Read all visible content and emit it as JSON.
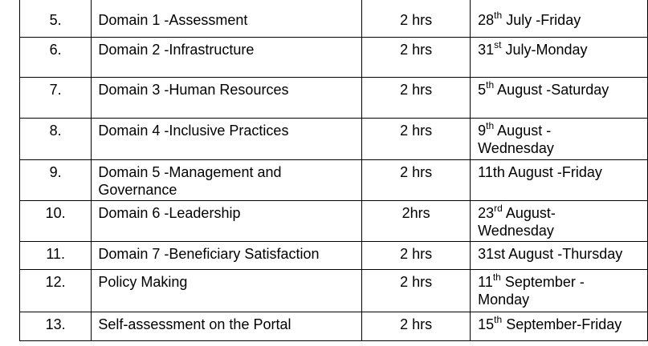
{
  "rows": [
    {
      "num": "5.",
      "item": "Domain 1 -Assessment",
      "duration": "2 hrs",
      "date_day": "28",
      "date_suffix": "th",
      "date_rest": " July -Friday"
    },
    {
      "num": "6.",
      "item": "Domain 2 -Infrastructure",
      "duration": "2 hrs",
      "date_day": "31",
      "date_suffix": "st",
      "date_rest": " July-Monday"
    },
    {
      "num": "7.",
      "item": "Domain 3 -Human Resources",
      "duration": "2 hrs",
      "date_day": "5",
      "date_suffix": "th",
      "date_rest": " August -Saturday"
    },
    {
      "num": "8.",
      "item": "Domain 4 -Inclusive Practices",
      "duration": "2 hrs",
      "date_day": "9",
      "date_suffix": "th",
      "date_rest": " August -\nWednesday"
    },
    {
      "num": "9.",
      "item": "Domain 5 -Management and\nGovernance",
      "duration": "2 hrs",
      "date_day": "11th August -Friday",
      "date_suffix": "",
      "date_rest": ""
    },
    {
      "num": "10.",
      "item": "Domain 6 -Leadership",
      "duration": "2hrs",
      "date_day": "23",
      "date_suffix": "rd",
      "date_rest": " August-\nWednesday"
    },
    {
      "num": "11.",
      "item": "Domain 7 -Beneficiary Satisfaction",
      "duration": "2 hrs",
      "date_day": "31st August -Thursday",
      "date_suffix": "",
      "date_rest": ""
    },
    {
      "num": "12.",
      "item": "Policy Making",
      "duration": "2 hrs",
      "date_day": "11",
      "date_suffix": "th",
      "date_rest": " September -\nMonday"
    },
    {
      "num": "13.",
      "item": "Self-assessment on the Portal",
      "duration": "2 hrs",
      "date_day": "15",
      "date_suffix": "th",
      "date_rest": " September-Friday"
    }
  ]
}
